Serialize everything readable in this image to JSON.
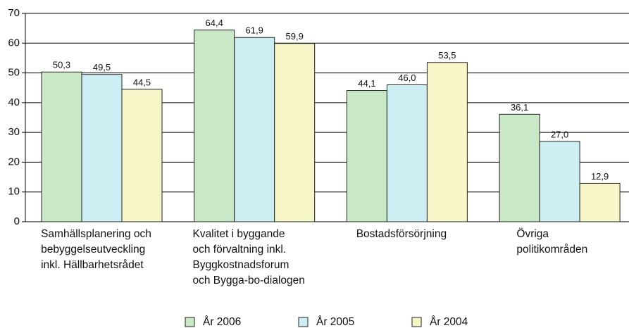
{
  "chart_data": {
    "type": "bar",
    "categories": [
      "Samhällsplanering och\nbebyggelseutveckling\ninkl. Hällbarhetsrådet",
      "Kvalitet i byggande\noch förvaltning inkl.\nByggkostnadsforum\noch Bygga-bo-dialogen",
      "Bostadsförsörjning",
      "Övriga politikområden"
    ],
    "series": [
      {
        "name": "År 2006",
        "color": "#c9e8c6",
        "values": [
          50.3,
          64.4,
          44.1,
          36.1
        ],
        "value_labels": [
          "50,3",
          "64,4",
          "44,1",
          "36,1"
        ]
      },
      {
        "name": "År 2005",
        "color": "#cdeef2",
        "values": [
          49.5,
          61.9,
          46.0,
          27.0
        ],
        "value_labels": [
          "49,5",
          "61,9",
          "46,0",
          "27,0"
        ]
      },
      {
        "name": "År 2004",
        "color": "#f6f6c9",
        "values": [
          44.5,
          59.9,
          53.5,
          12.9
        ],
        "value_labels": [
          "44,5",
          "59,9",
          "53,5",
          "12,9"
        ]
      }
    ],
    "ylim": [
      0,
      70
    ],
    "yticks": [
      0,
      10,
      20,
      30,
      40,
      50,
      60,
      70
    ],
    "grid": true,
    "legend": "bottom"
  }
}
